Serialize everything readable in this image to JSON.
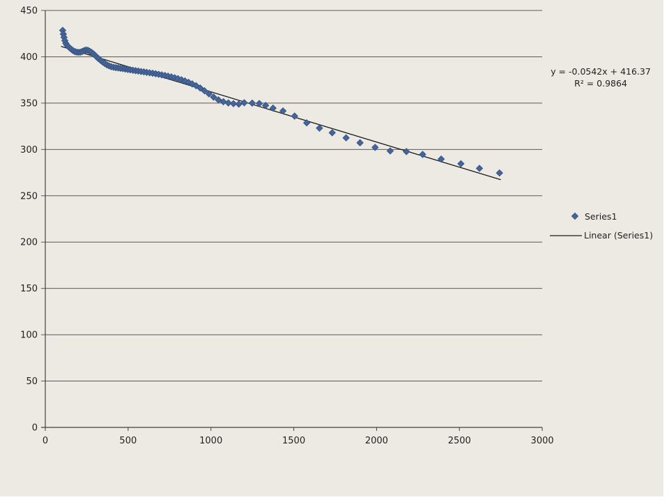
{
  "chart_data": {
    "type": "scatter",
    "title": "",
    "xlabel": "",
    "ylabel": "",
    "x_axis": {
      "min": 0,
      "max": 3000,
      "step": 500,
      "ticks": [
        "0",
        "500",
        "1000",
        "1500",
        "2000",
        "2500",
        "3000"
      ]
    },
    "y_axis": {
      "min": 0,
      "max": 450,
      "step": 50,
      "ticks": [
        "0",
        "50",
        "100",
        "150",
        "200",
        "250",
        "300",
        "350",
        "400",
        "450"
      ]
    },
    "grid": "horizontal",
    "legend_position": "right",
    "series": [
      {
        "name": "Series1",
        "marker": "diamond",
        "points": [
          [
            105,
            428.5
          ],
          [
            109,
            424.5
          ],
          [
            113,
            421
          ],
          [
            118,
            417.5
          ],
          [
            124,
            414.5
          ],
          [
            131,
            412.5
          ],
          [
            139,
            411
          ],
          [
            148,
            409.5
          ],
          [
            158,
            408
          ],
          [
            169,
            406.5
          ],
          [
            180,
            405.5
          ],
          [
            191,
            405
          ],
          [
            202,
            404.8
          ],
          [
            213,
            405
          ],
          [
            224,
            405.8
          ],
          [
            235,
            406.8
          ],
          [
            246,
            407.3
          ],
          [
            257,
            407
          ],
          [
            268,
            406
          ],
          [
            279,
            404.8
          ],
          [
            290,
            403.3
          ],
          [
            301,
            401.5
          ],
          [
            312,
            399.5
          ],
          [
            323,
            397.8
          ],
          [
            335,
            396
          ],
          [
            347,
            394.3
          ],
          [
            359,
            392.8
          ],
          [
            372,
            391.3
          ],
          [
            385,
            390.2
          ],
          [
            398,
            389.3
          ],
          [
            412,
            388.7
          ],
          [
            426,
            388.3
          ],
          [
            440,
            388
          ],
          [
            454,
            387.6
          ],
          [
            468,
            387.2
          ],
          [
            483,
            386.8
          ],
          [
            498,
            386.3
          ],
          [
            513,
            385.9
          ],
          [
            529,
            385.4
          ],
          [
            545,
            385
          ],
          [
            561,
            384.6
          ],
          [
            578,
            384.1
          ],
          [
            595,
            383.7
          ],
          [
            612,
            383.2
          ],
          [
            630,
            382.7
          ],
          [
            648,
            382.2
          ],
          [
            666,
            381.7
          ],
          [
            684,
            381.1
          ],
          [
            703,
            380.5
          ],
          [
            722,
            379.8
          ],
          [
            741,
            379.1
          ],
          [
            761,
            378.3
          ],
          [
            781,
            377.4
          ],
          [
            801,
            376.4
          ],
          [
            822,
            375.2
          ],
          [
            843,
            373.9
          ],
          [
            865,
            372.4
          ],
          [
            887,
            370.7
          ],
          [
            910,
            368.8
          ],
          [
            935,
            366.3
          ],
          [
            961,
            363.3
          ],
          [
            988,
            360
          ],
          [
            1016,
            356.5
          ],
          [
            1045,
            353.5
          ],
          [
            1075,
            351.5
          ],
          [
            1105,
            350.2
          ],
          [
            1136,
            349.4
          ],
          [
            1168,
            348.9
          ],
          [
            1201,
            350.4
          ],
          [
            1249,
            350
          ],
          [
            1292,
            349.6
          ],
          [
            1330,
            347.5
          ],
          [
            1375,
            344.6
          ],
          [
            1435,
            341.5
          ],
          [
            1505,
            336
          ],
          [
            1578,
            328.7
          ],
          [
            1655,
            323
          ],
          [
            1732,
            318
          ],
          [
            1816,
            312.5
          ],
          [
            1900,
            307.2
          ],
          [
            1991,
            302.2
          ],
          [
            2082,
            298.4
          ],
          [
            2180,
            297.7
          ],
          [
            2278,
            294.6
          ],
          [
            2390,
            289.6
          ],
          [
            2509,
            284.6
          ],
          [
            2621,
            279.6
          ],
          [
            2742,
            274.6
          ]
        ]
      }
    ],
    "trendline": {
      "label": "Linear (Series1)",
      "equation": "y = -0.0542x + 416.37",
      "r_squared": "R² = 0.9864",
      "slope": -0.0542,
      "intercept": 416.37,
      "x_start": 95,
      "x_end": 2750
    },
    "legend": {
      "entries": [
        {
          "label": "Series1",
          "type": "marker"
        },
        {
          "label": "Linear (Series1)",
          "type": "line"
        }
      ]
    },
    "colors": {
      "background": "#EDEAE4",
      "marker_fill": "#44659E",
      "marker_stroke": "#3A557F",
      "trendline": "#1a1a1a",
      "gridline": "#595959",
      "axis": "#404040",
      "text": "#1f1f1f"
    }
  }
}
